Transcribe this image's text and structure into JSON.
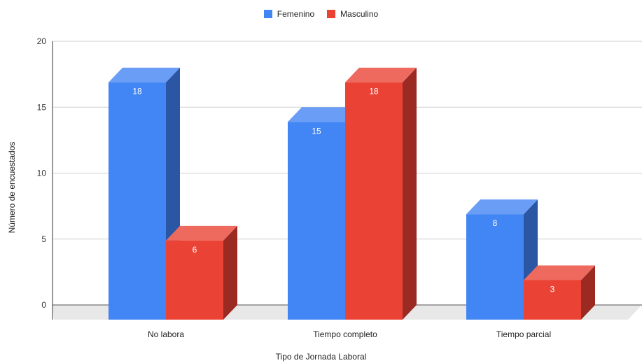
{
  "chart_data": {
    "type": "bar",
    "style": "3d-grouped",
    "categories": [
      "No labora",
      "Tiempo completo",
      "Tiempo parcial"
    ],
    "series": [
      {
        "name": "Femenino",
        "values": [
          18,
          15,
          8
        ],
        "color": "#4285f4",
        "side_color": "#2a56a4",
        "top_color": "#6a9ef6"
      },
      {
        "name": "Masculino",
        "values": [
          6,
          18,
          3
        ],
        "color": "#ea4335",
        "side_color": "#9b2a22",
        "top_color": "#ef6a5e"
      }
    ],
    "xlabel": "Tipo de Jornada Laboral",
    "ylabel": "Número de encuestados",
    "ylim": [
      0,
      20
    ],
    "yticks": [
      0,
      5,
      10,
      15,
      20
    ],
    "grid": true,
    "legend_position": "top-center",
    "data_labels": true
  }
}
